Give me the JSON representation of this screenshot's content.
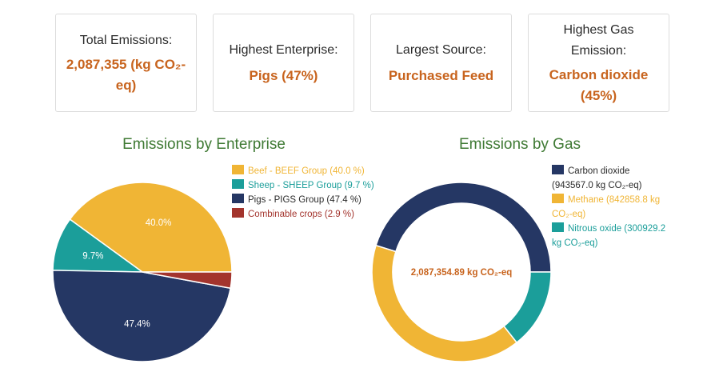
{
  "cards": [
    {
      "label": "Total Emissions:",
      "value": "2,087,355 (kg CO₂-eq)"
    },
    {
      "label": "Highest Enterprise:",
      "value": "Pigs (47%)"
    },
    {
      "label": "Largest Source:",
      "value": "Purchased Feed"
    },
    {
      "label": "Highest Gas Emission:",
      "value": "Carbon dioxide (45%)"
    }
  ],
  "colors": {
    "accent": "#c8641e",
    "title": "#3f7a34",
    "beef": "#f0b535",
    "sheep": "#1b9e9a",
    "pigs": "#253764",
    "crops": "#a3342d"
  },
  "chart_data": [
    {
      "type": "pie",
      "title": "Emissions by Enterprise",
      "legend_position": "right",
      "labels": [
        "Beef - BEEF Group",
        "Sheep - SHEEP Group",
        "Pigs  - PIGS Group",
        "Combinable crops"
      ],
      "legend_labels": [
        "Beef - BEEF Group (40.0 %)",
        "Sheep - SHEEP Group (9.7 %)",
        "Pigs  - PIGS Group (47.4 %)",
        "Combinable crops (2.9 %)"
      ],
      "values": [
        40.0,
        9.7,
        47.4,
        2.9
      ],
      "slice_labels": [
        "40.0%",
        "9.7%",
        "47.4%",
        ""
      ]
    },
    {
      "type": "pie",
      "title": "Emissions by Gas",
      "legend_position": "right",
      "donut": true,
      "center_label": "2,087,354.89 kg CO₂-eq",
      "labels": [
        "Carbon dioxide",
        "Methane",
        "Nitrous oxide"
      ],
      "legend_labels": [
        "Carbon dioxide (943567.0 kg CO₂-eq)",
        "Methane (842858.8 kg CO₂-eq)",
        "Nitrous oxide (300929.2 kg CO₂-eq)"
      ],
      "values": [
        943567.0,
        842858.8,
        300929.2
      ]
    }
  ]
}
